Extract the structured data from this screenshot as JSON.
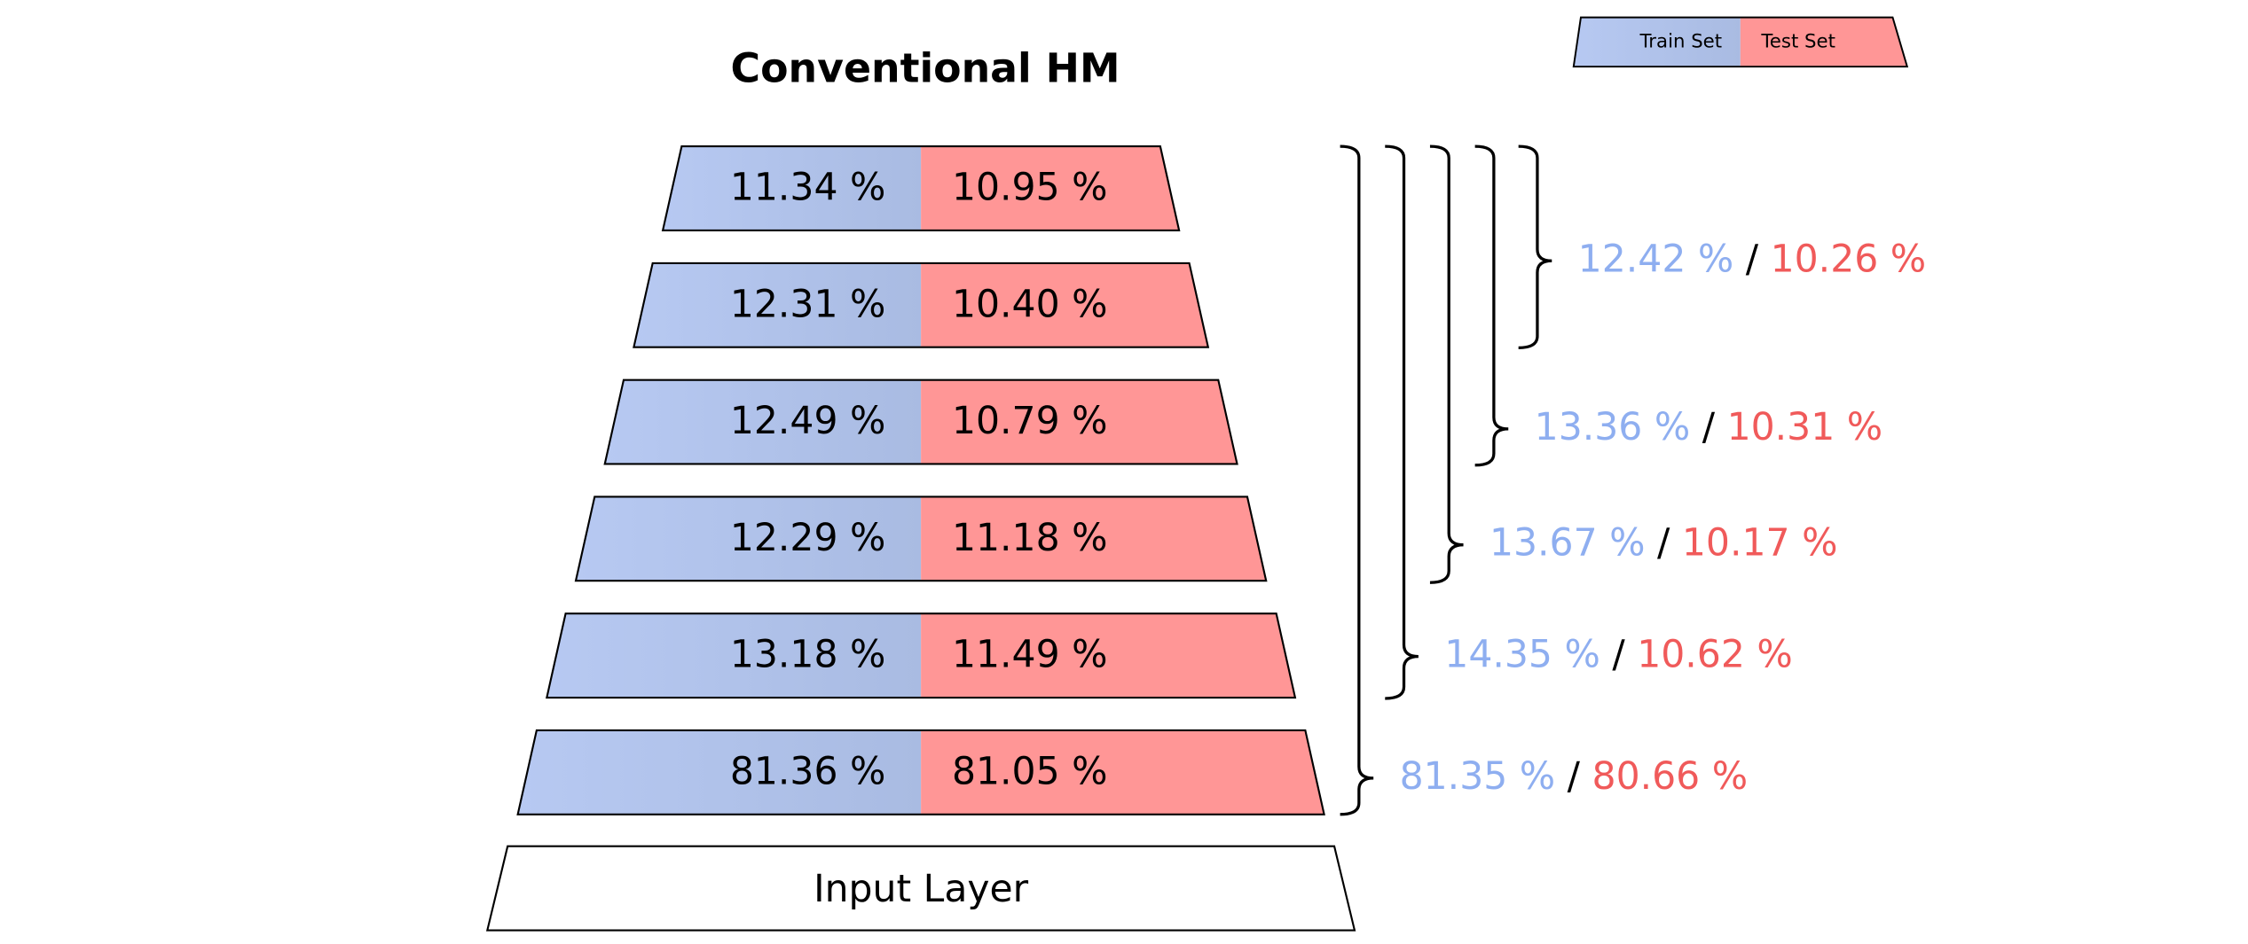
{
  "title": "Conventional HM",
  "legend": {
    "train": "Train Set",
    "test": "Test Set"
  },
  "layers": [
    {
      "train": "11.34 %",
      "test": "10.95 %"
    },
    {
      "train": "12.31 %",
      "test": "10.40 %"
    },
    {
      "train": "12.49 %",
      "test": "10.79 %"
    },
    {
      "train": "12.29 %",
      "test": "11.18 %"
    },
    {
      "train": "13.18 %",
      "test": "11.49 %"
    },
    {
      "train": "81.36 %",
      "test": "81.05 %"
    }
  ],
  "brackets": [
    {
      "train": "12.42 %",
      "separator": "/",
      "test": "10.26 %"
    },
    {
      "train": "13.36 %",
      "separator": "/",
      "test": "10.31 %"
    },
    {
      "train": "13.67 %",
      "separator": "/",
      "test": "10.17 %"
    },
    {
      "train": "14.35 %",
      "separator": "/",
      "test": "10.62 %"
    },
    {
      "train": "81.35 %",
      "separator": "/",
      "test": "80.66 %"
    }
  ],
  "input_layer": "Input Layer"
}
